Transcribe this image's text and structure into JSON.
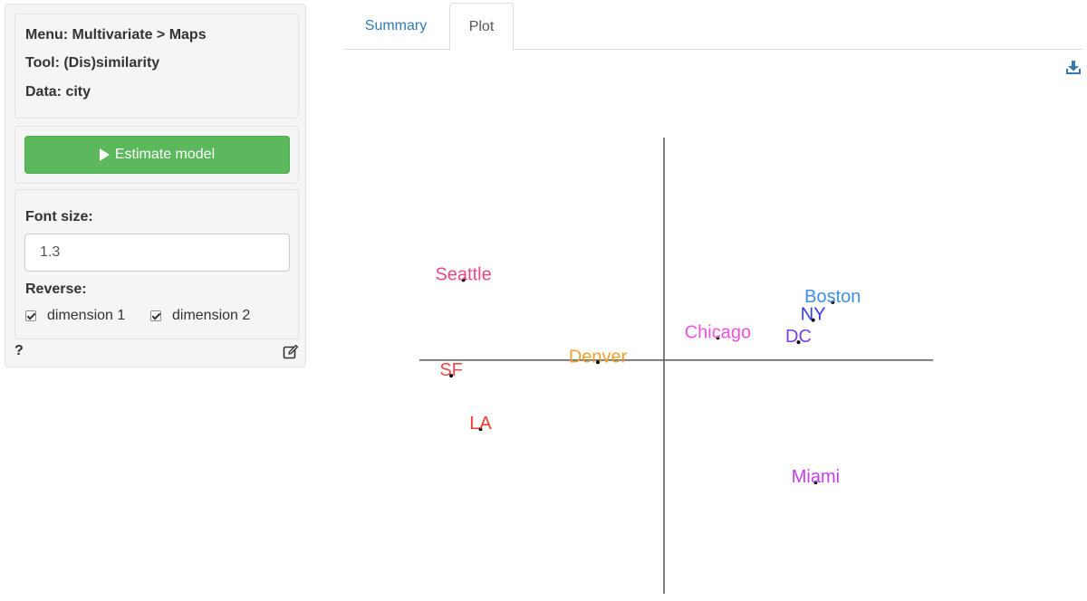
{
  "sidebar": {
    "info": {
      "menu": "Menu: Multivariate > Maps",
      "tool": "Tool: (Dis)similarity",
      "data": "Data: city"
    },
    "estimate_button": "Estimate model",
    "font_size_label": "Font size:",
    "font_size_value": "1.3",
    "reverse_label": "Reverse:",
    "dimension1_label": "dimension 1",
    "dimension2_label": "dimension 2",
    "help_text": "?"
  },
  "tabs": [
    {
      "label": "Summary"
    },
    {
      "label": "Plot"
    }
  ],
  "active_tab": "Plot",
  "icons": {
    "download": "download-icon",
    "edit": "edit-icon",
    "play": "play-icon"
  },
  "colors": {
    "accent": "#337ab7",
    "button": "#5cb85c"
  },
  "chart_data": {
    "type": "scatter",
    "xlim": [
      -1.0,
      1.1
    ],
    "ylim": [
      -1.05,
      1.0
    ],
    "points": [
      {
        "label": "Seattle",
        "x": -0.82,
        "y": 0.36,
        "color": "#e8488a"
      },
      {
        "label": "SF",
        "x": -0.87,
        "y": -0.07,
        "color": "#e34a4a"
      },
      {
        "label": "LA",
        "x": -0.75,
        "y": -0.31,
        "color": "#f03c2c"
      },
      {
        "label": "Denver",
        "x": -0.27,
        "y": -0.01,
        "color": "#f0a030"
      },
      {
        "label": "Chicago",
        "x": 0.22,
        "y": 0.1,
        "color": "#f050e0"
      },
      {
        "label": "Boston",
        "x": 0.69,
        "y": 0.26,
        "color": "#3f8fe8"
      },
      {
        "label": "NY",
        "x": 0.61,
        "y": 0.18,
        "color": "#3a3ae0"
      },
      {
        "label": "DC",
        "x": 0.55,
        "y": 0.08,
        "color": "#7a3ee6"
      },
      {
        "label": "Miami",
        "x": 0.62,
        "y": -0.55,
        "color": "#c43ee8"
      }
    ]
  }
}
